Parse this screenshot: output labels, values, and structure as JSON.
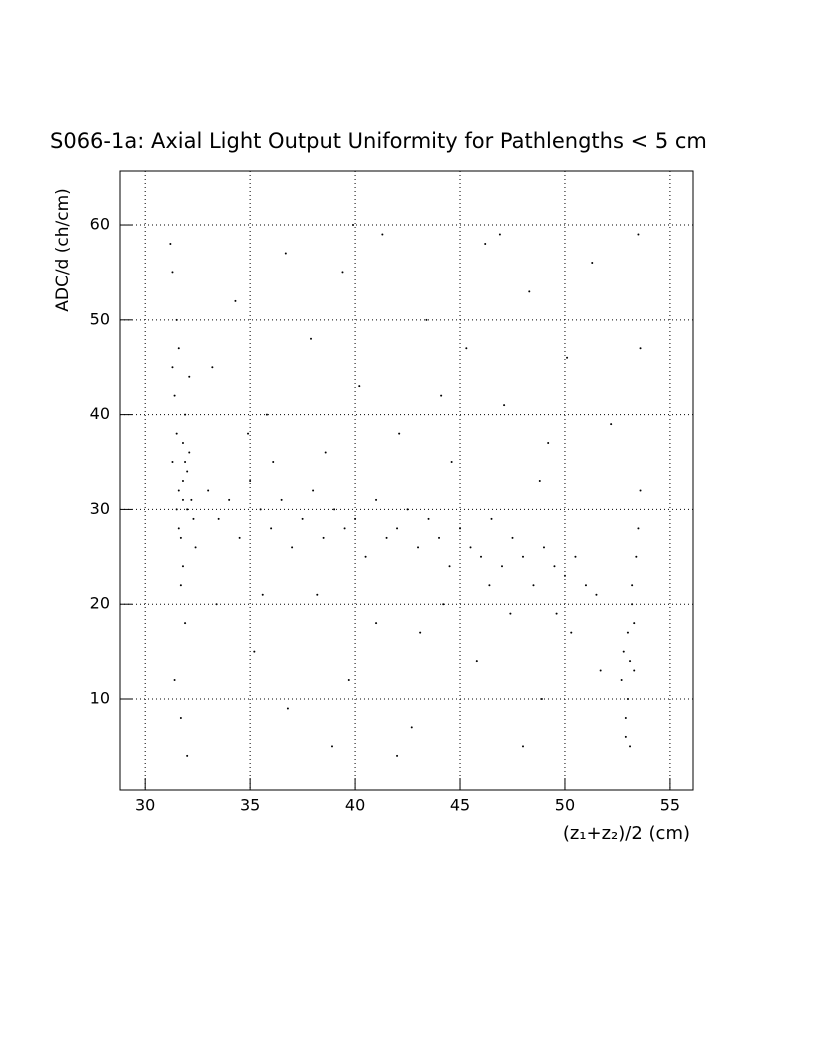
{
  "chart_data": {
    "type": "scatter",
    "title": "S066-1a: Axial Light Output Uniformity for Pathlengths < 5 cm",
    "x_label": "(z₁+z₂)/2 (cm)",
    "y_label": "ADC/d (ch/cm)",
    "color": "#000000",
    "grid": true,
    "xlim": [
      28.8,
      56.1
    ],
    "ylim": [
      0.4,
      65.7
    ],
    "xticks": [
      30,
      35,
      40,
      45,
      50,
      55
    ],
    "yticks": [
      10,
      20,
      30,
      40,
      50,
      60
    ],
    "x": [
      31.3,
      31.5,
      31.8,
      32.0,
      31.6,
      31.9,
      32.2,
      31.4,
      31.7,
      32.1,
      31.5,
      31.8,
      31.6,
      32.3,
      31.9,
      31.3,
      31.7,
      32.0,
      31.5,
      31.8,
      31.2,
      32.4,
      31.6,
      31.9,
      31.4,
      31.7,
      32.0,
      31.3,
      31.8,
      32.1,
      33.0,
      33.5,
      34.0,
      34.5,
      35.0,
      35.5,
      36.0,
      36.5,
      37.0,
      37.5,
      38.0,
      38.5,
      39.0,
      39.5,
      40.0,
      40.5,
      41.0,
      41.5,
      42.0,
      42.5,
      43.0,
      43.5,
      44.0,
      44.5,
      45.0,
      45.5,
      46.0,
      46.5,
      47.0,
      47.5,
      48.0,
      48.5,
      49.0,
      49.5,
      50.0,
      50.5,
      51.0,
      51.5,
      33.2,
      34.3,
      35.8,
      36.7,
      37.9,
      38.6,
      39.4,
      40.2,
      41.3,
      42.1,
      43.4,
      44.6,
      45.3,
      46.2,
      47.1,
      48.3,
      49.2,
      50.1,
      51.3,
      52.2,
      53.5,
      53.6,
      36.1,
      44.1,
      48.8,
      34.9,
      39.9,
      46.9,
      33.4,
      35.2,
      36.8,
      38.2,
      39.7,
      41.0,
      42.7,
      44.2,
      45.8,
      47.4,
      48.9,
      50.3,
      51.7,
      35.6,
      43.1,
      46.4,
      49.6,
      38.9,
      42.0,
      48.0,
      52.8,
      53.0,
      53.2,
      52.9,
      53.3,
      53.1,
      53.4,
      53.0,
      52.7,
      53.5,
      53.2,
      52.9,
      53.3,
      53.6,
      53.1
    ],
    "values": [
      45,
      38,
      33,
      30,
      28,
      35,
      31,
      42,
      27,
      36,
      50,
      24,
      32,
      29,
      40,
      55,
      22,
      34,
      30,
      37,
      58,
      26,
      47,
      18,
      12,
      8,
      4,
      35,
      31,
      44,
      32,
      29,
      31,
      27,
      33,
      30,
      28,
      31,
      26,
      29,
      32,
      27,
      30,
      28,
      29,
      25,
      31,
      27,
      28,
      30,
      26,
      29,
      27,
      24,
      28,
      26,
      25,
      29,
      24,
      27,
      25,
      22,
      26,
      24,
      23,
      25,
      22,
      21,
      45,
      52,
      40,
      57,
      48,
      36,
      55,
      43,
      59,
      38,
      50,
      35,
      47,
      58,
      41,
      53,
      37,
      46,
      56,
      39,
      59,
      47,
      35,
      42,
      33,
      38,
      60,
      59,
      20,
      15,
      9,
      21,
      12,
      18,
      7,
      20,
      14,
      19,
      10,
      17,
      13,
      21,
      17,
      22,
      19,
      5,
      4,
      5,
      15,
      10,
      20,
      8,
      13,
      5,
      25,
      17,
      12,
      28,
      22,
      6,
      18,
      32,
      14
    ]
  }
}
